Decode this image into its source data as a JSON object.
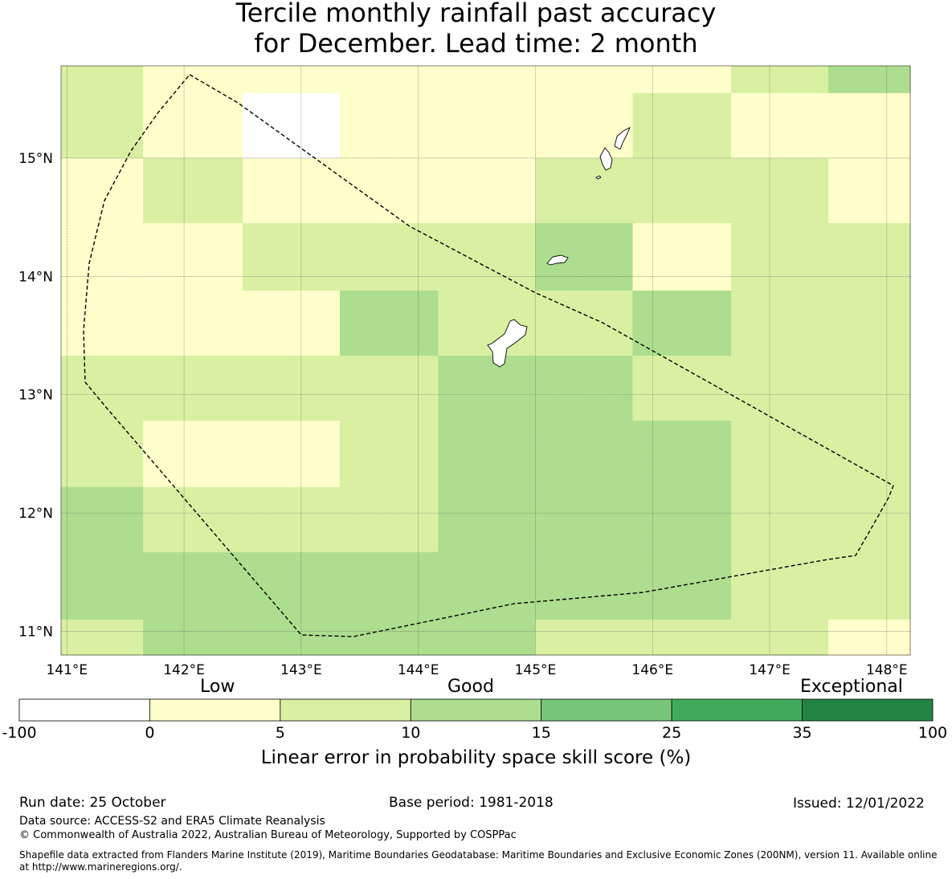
{
  "title": {
    "line1": "Tercile monthly rainfall past accuracy",
    "line2": "for December. Lead time: 2 month"
  },
  "map": {
    "lat_ticks": [
      "15°N",
      "14°N",
      "13°N",
      "12°N",
      "11°N"
    ],
    "lon_ticks": [
      "141°E",
      "142°E",
      "143°E",
      "144°E",
      "145°E",
      "146°E",
      "147°E",
      "148°E"
    ],
    "lon_values": [
      141,
      142,
      143,
      144,
      145,
      146,
      147,
      148
    ],
    "lat_values": [
      15,
      14,
      13,
      12,
      11
    ],
    "lon_range": [
      140.95,
      148.2
    ],
    "lat_range": [
      10.8,
      15.78
    ],
    "region": "Northern Mariana Islands and Guam EEZ",
    "grid_columns_lon": [
      140.95,
      141.65,
      142.5,
      143.33,
      144.17,
      145.0,
      145.83,
      146.67,
      147.5,
      148.2
    ],
    "grid_rows_lat": [
      15.78,
      15.55,
      15.0,
      14.45,
      13.88,
      13.33,
      12.78,
      12.22,
      11.67,
      11.1,
      10.8
    ],
    "cell_classes_legend": "0 = -100..0, 1 = 0..5 (Low), 2 = 5..10, 3 = 10..15 (Good), 4 = 15..25, 5 = 25..35, 6 = 35..100 (Exceptional)",
    "cells": [
      [
        2,
        1,
        1,
        1,
        1,
        1,
        1,
        2,
        3
      ],
      [
        2,
        1,
        0,
        1,
        1,
        1,
        2,
        1,
        1
      ],
      [
        1,
        2,
        1,
        1,
        1,
        2,
        2,
        2,
        1
      ],
      [
        1,
        1,
        2,
        2,
        2,
        3,
        1,
        2,
        2
      ],
      [
        1,
        1,
        1,
        3,
        2,
        2,
        3,
        2,
        2
      ],
      [
        2,
        2,
        2,
        2,
        3,
        3,
        2,
        2,
        2
      ],
      [
        2,
        1,
        1,
        2,
        3,
        3,
        3,
        2,
        2
      ],
      [
        3,
        2,
        2,
        2,
        3,
        3,
        3,
        2,
        2
      ],
      [
        3,
        3,
        3,
        3,
        3,
        3,
        3,
        2,
        2
      ],
      [
        2,
        3,
        3,
        3,
        3,
        2,
        2,
        2,
        1
      ]
    ]
  },
  "colorbar": {
    "colors": [
      "#ffffff",
      "#ffffcc",
      "#d9f0a3",
      "#addd8e",
      "#78c679",
      "#41ab5d",
      "#238443"
    ],
    "ticks": [
      "-100",
      "0",
      "5",
      "10",
      "15",
      "25",
      "35",
      "100"
    ],
    "category_low": "Low",
    "category_good": "Good",
    "category_exceptional": "Exceptional",
    "label": "Linear error in probability space skill score (%)"
  },
  "footer": {
    "run_date": "Run date: 25 October",
    "base_period": "Base period: 1981-2018",
    "issued": "Issued: 12/01/2022",
    "data_source": "Data source: ACCESS-S2 and ERA5 Climate Reanalysis",
    "copyright": "© Commonwealth of Australia 2022, Australian Bureau of Meteorology, Supported by COSPPac",
    "shapefile_credit": "Shapefile data extracted from Flanders Marine Institute (2019), Maritime Boundaries Geodatabase: Maritime Boundaries and Exclusive Economic Zones (200NM), version 11. Available online at http://www.marineregions.org/."
  }
}
